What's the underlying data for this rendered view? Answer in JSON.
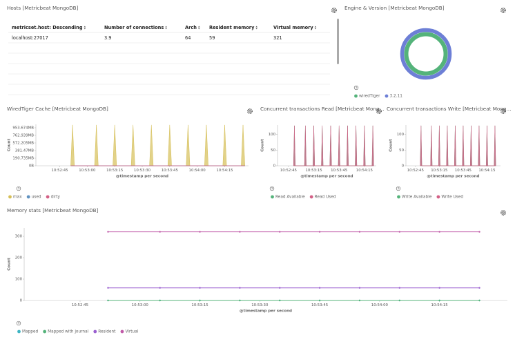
{
  "hosts_panel": {
    "title": "Hosts [Metricbeat MongoDB]",
    "columns": [
      "metricset.host: Descending",
      "Number of connections",
      "Arch",
      "Resident memory",
      "Virtual memory"
    ],
    "rows": [
      [
        "localhost:27017",
        3.9,
        64,
        59,
        321
      ]
    ]
  },
  "chart_data": [
    {
      "type": "area",
      "title": "WiredTiger Cache [Metricbeat MongoDB]",
      "x_label": "@timestamp per second",
      "y_label": "Count",
      "x": [
        "10:52:51",
        "10:52:52",
        "10:52:53",
        "10:53:04",
        "10:53:05",
        "10:53:06",
        "10:53:14",
        "10:53:15",
        "10:53:16",
        "10:53:24",
        "10:53:25",
        "10:53:26",
        "10:53:34",
        "10:53:35",
        "10:53:36",
        "10:53:44",
        "10:53:45",
        "10:53:46",
        "10:53:54",
        "10:53:55",
        "10:53:56",
        "10:54:04",
        "10:54:05",
        "10:54:06",
        "10:54:14",
        "10:54:15",
        "10:54:16",
        "10:54:24",
        "10:54:25",
        "10:54:26"
      ],
      "series": [
        {
          "name": "max",
          "color": "#d6bf57",
          "values": [
            0,
            1073741824,
            0,
            0,
            1073741824,
            0,
            0,
            1073741824,
            0,
            0,
            1073741824,
            0,
            0,
            1073741824,
            0,
            0,
            1073741824,
            0,
            0,
            1073741824,
            0,
            0,
            1073741824,
            0,
            0,
            1073741824,
            0,
            0,
            1073741824,
            0
          ]
        },
        {
          "name": "used",
          "color": "#6092c0",
          "values": [
            0,
            0,
            0,
            0,
            0,
            0,
            0,
            0,
            0,
            0,
            0,
            0,
            0,
            0,
            0,
            0,
            0,
            0,
            0,
            0,
            0,
            0,
            0,
            0,
            0,
            0,
            0,
            0,
            0,
            0
          ]
        },
        {
          "name": "dirty",
          "color": "#d36086",
          "values": [
            0,
            0,
            0,
            0,
            0,
            0,
            0,
            0,
            0,
            0,
            0,
            0,
            0,
            0,
            0,
            0,
            0,
            0,
            0,
            0,
            0,
            0,
            0,
            0,
            0,
            0,
            0,
            0,
            0,
            0
          ]
        }
      ],
      "xlim": [
        "10:52:32",
        "10:54:28"
      ],
      "xticks": [
        "10:52:45",
        "10:53:00",
        "10:53:15",
        "10:53:30",
        "10:53:45",
        "10:54:00",
        "10:54:15"
      ],
      "ylim": [
        0,
        1090000000
      ],
      "yticks": [
        {
          "value": 0,
          "label": "0B"
        },
        {
          "value": 200000000,
          "label": "190.735MB"
        },
        {
          "value": 400000000,
          "label": "381.47MB"
        },
        {
          "value": 600000000,
          "label": "572.205MB"
        },
        {
          "value": 800000000,
          "label": "762.939MB"
        },
        {
          "value": 1000000000,
          "label": "953.674MB"
        }
      ]
    },
    {
      "type": "area",
      "title": "Concurrent transactions Read [Metricbeat Mong…",
      "x_label": "@timestamp per second",
      "y_label": "Count",
      "x": [
        "10:52:51",
        "10:52:52",
        "10:52:53",
        "10:53:04",
        "10:53:05",
        "10:53:06",
        "10:53:14",
        "10:53:15",
        "10:53:16",
        "10:53:24",
        "10:53:25",
        "10:53:26",
        "10:53:34",
        "10:53:35",
        "10:53:36",
        "10:53:44",
        "10:53:45",
        "10:53:46",
        "10:53:54",
        "10:53:55",
        "10:53:56",
        "10:54:04",
        "10:54:05",
        "10:54:06",
        "10:54:14",
        "10:54:15",
        "10:54:16",
        "10:54:24",
        "10:54:25",
        "10:54:26"
      ],
      "series": [
        {
          "name": "Read Available",
          "color": "#54b37a",
          "values": [
            0,
            128,
            0,
            0,
            128,
            0,
            0,
            128,
            0,
            0,
            128,
            0,
            0,
            128,
            0,
            0,
            128,
            0,
            0,
            128,
            0,
            0,
            128,
            0,
            0,
            128,
            0,
            0,
            128,
            0
          ]
        },
        {
          "name": "Read Used",
          "color": "#d36086",
          "values": [
            0,
            128,
            0,
            0,
            128,
            0,
            0,
            128,
            0,
            0,
            128,
            0,
            0,
            128,
            0,
            0,
            128,
            0,
            0,
            128,
            0,
            0,
            128,
            0,
            0,
            128,
            0,
            0,
            128,
            0
          ]
        }
      ],
      "xlim": [
        "10:52:32",
        "10:54:29"
      ],
      "xticks": [
        "10:52:45",
        "10:53:15",
        "10:53:45",
        "10:54:15"
      ],
      "ylim": [
        0,
        130
      ],
      "yticks": [
        0,
        50,
        100
      ]
    },
    {
      "type": "area",
      "title": "Concurrent transactions Write [Metricbeat Mong…",
      "x_label": "@timestamp per second",
      "y_label": "Count",
      "x": [
        "10:52:51",
        "10:52:52",
        "10:52:53",
        "10:53:04",
        "10:53:05",
        "10:53:06",
        "10:53:14",
        "10:53:15",
        "10:53:16",
        "10:53:24",
        "10:53:25",
        "10:53:26",
        "10:53:34",
        "10:53:35",
        "10:53:36",
        "10:53:44",
        "10:53:45",
        "10:53:46",
        "10:53:54",
        "10:53:55",
        "10:53:56",
        "10:54:04",
        "10:54:05",
        "10:54:06",
        "10:54:14",
        "10:54:15",
        "10:54:16",
        "10:54:24",
        "10:54:25",
        "10:54:26"
      ],
      "series": [
        {
          "name": "Write Available",
          "color": "#54b37a",
          "values": [
            0,
            128,
            0,
            0,
            128,
            0,
            0,
            128,
            0,
            0,
            128,
            0,
            0,
            128,
            0,
            0,
            128,
            0,
            0,
            128,
            0,
            0,
            128,
            0,
            0,
            128,
            0,
            0,
            128,
            0
          ]
        },
        {
          "name": "Write Used",
          "color": "#d36086",
          "values": [
            0,
            128,
            0,
            0,
            128,
            0,
            0,
            128,
            0,
            0,
            128,
            0,
            0,
            128,
            0,
            0,
            128,
            0,
            0,
            128,
            0,
            0,
            128,
            0,
            0,
            128,
            0,
            0,
            128,
            0
          ]
        }
      ],
      "xlim": [
        "10:52:33",
        "10:54:32"
      ],
      "xticks": [
        "10:52:45",
        "10:53:15",
        "10:53:45",
        "10:54:15"
      ],
      "ylim": [
        0,
        130
      ],
      "yticks": [
        0,
        50,
        100
      ]
    },
    {
      "type": "line",
      "title": "Memory stats [Metricbeat MongoDB]",
      "x_label": "@timestamp per second",
      "y_label": "Count",
      "x": [
        "10:52:52",
        "10:53:05",
        "10:53:15",
        "10:53:25",
        "10:53:35",
        "10:53:45",
        "10:53:55",
        "10:54:05",
        "10:54:15",
        "10:54:25"
      ],
      "series": [
        {
          "name": "Mapped",
          "color": "#3fb5c4",
          "values": [
            0,
            0,
            0,
            0,
            0,
            0,
            0,
            0,
            0,
            0
          ]
        },
        {
          "name": "Mapped with journal",
          "color": "#54b37a",
          "values": [
            0,
            0,
            0,
            0,
            0,
            0,
            0,
            0,
            0,
            0
          ]
        },
        {
          "name": "Resident",
          "color": "#9a5fd0",
          "values": [
            59,
            59,
            59,
            59,
            59,
            59,
            59,
            59,
            59,
            59
          ]
        },
        {
          "name": "Virtual",
          "color": "#c05aa8",
          "values": [
            321,
            321,
            321,
            321,
            321,
            321,
            321,
            321,
            321,
            321
          ]
        }
      ],
      "xlim": [
        "10:52:31",
        "10:54:32"
      ],
      "xticks": [
        "10:52:45",
        "10:53:00",
        "10:53:15",
        "10:53:30",
        "10:53:45",
        "10:54:00",
        "10:54:15"
      ],
      "ylim": [
        0,
        339
      ],
      "yticks": [
        0,
        100,
        200,
        300
      ]
    },
    {
      "type": "pie",
      "title": "Engine & Version [Metricbeat MongoDB]",
      "categories": [
        "wiredTiger",
        "3.2.11"
      ],
      "values": [
        100,
        100
      ],
      "colors": [
        "#54b37a",
        "#6d7fd6"
      ]
    }
  ]
}
